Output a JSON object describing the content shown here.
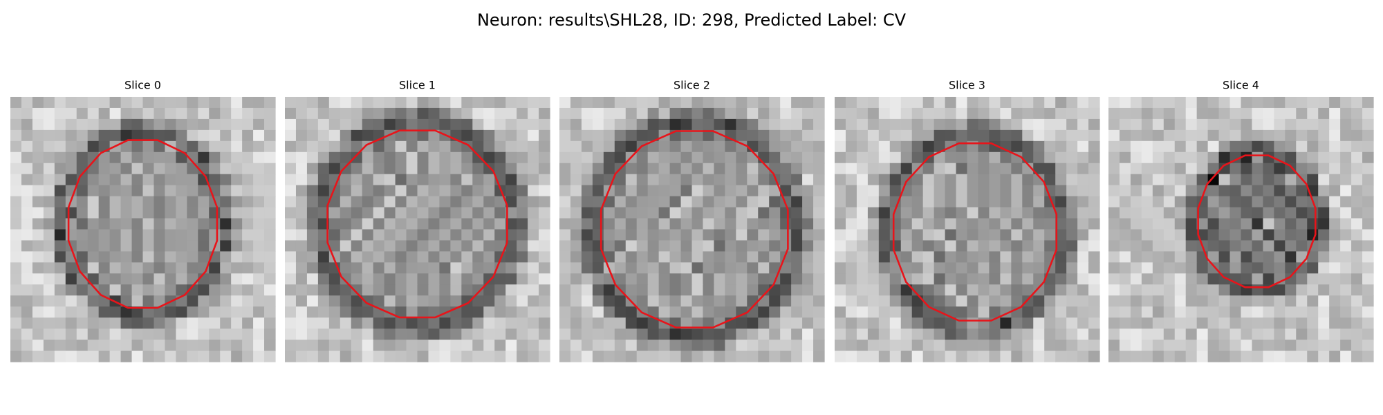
{
  "title": "Neuron: results\\SHL28, ID: 298, Predicted Label: CV",
  "panels": [
    {
      "title": "Slice 0"
    },
    {
      "title": "Slice 1"
    },
    {
      "title": "Slice 2"
    },
    {
      "title": "Slice 3"
    },
    {
      "title": "Slice 4"
    }
  ]
}
